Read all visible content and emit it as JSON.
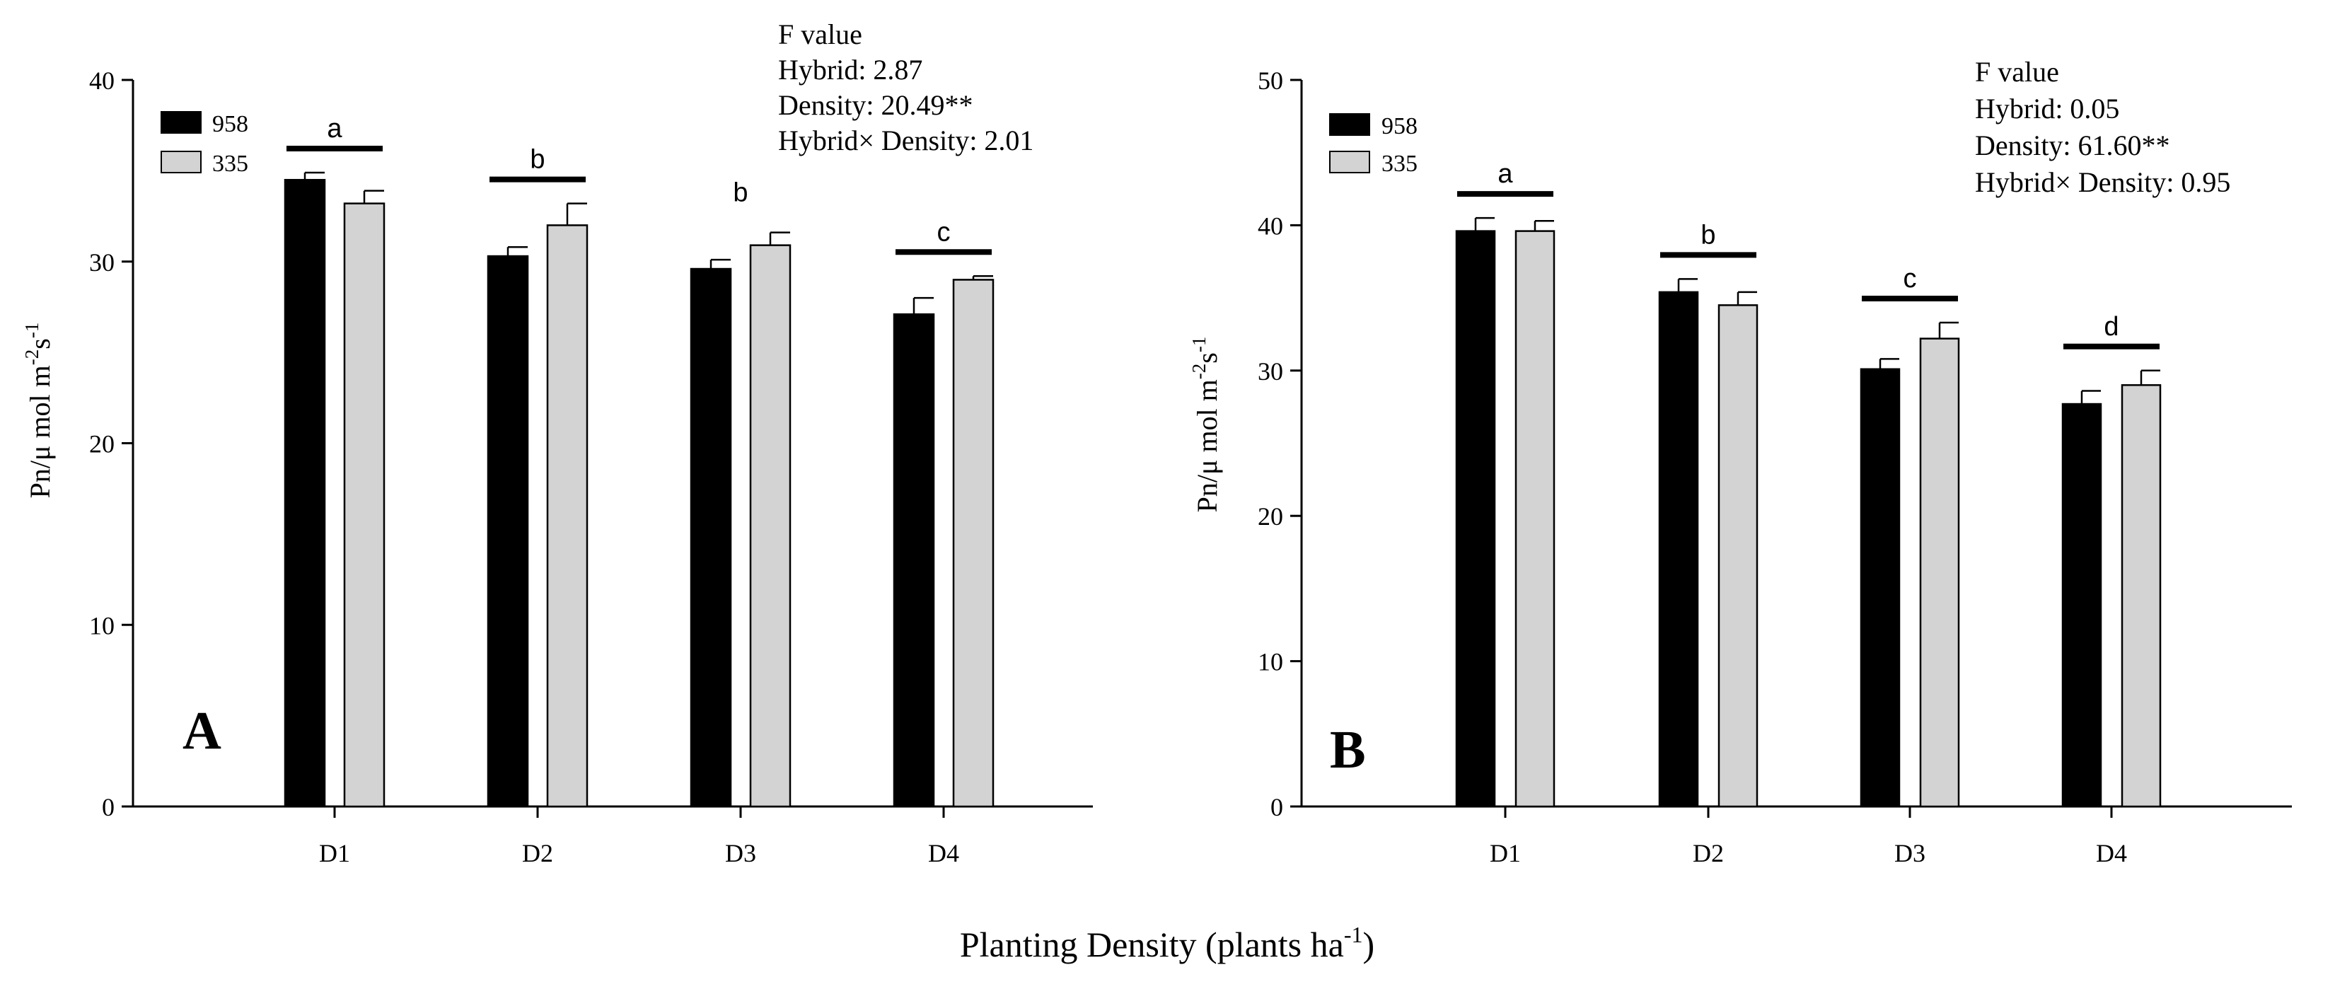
{
  "figure": {
    "xlabel_main": "Planting Density (plants ha",
    "xlabel_sup": "-1",
    "xlabel_close": ")"
  },
  "chart_data": [
    {
      "type": "bar",
      "panel_label": "A",
      "categories": [
        "D1",
        "D2",
        "D3",
        "D4"
      ],
      "series": [
        {
          "name": "958",
          "color": "#000000",
          "values": [
            34.5,
            30.3,
            29.6,
            27.1
          ],
          "errors": [
            0.4,
            0.5,
            0.5,
            0.9
          ]
        },
        {
          "name": "335",
          "color": "#d3d3d3",
          "values": [
            33.2,
            32.0,
            30.9,
            29.0
          ],
          "errors": [
            0.7,
            1.2,
            0.7,
            0.2
          ]
        }
      ],
      "significance": [
        "a",
        "b",
        "b",
        "c"
      ],
      "significance_bar": [
        true,
        true,
        false,
        true
      ],
      "ylabel_main": "Pn/μ mol m",
      "ylabel_sup1": "-2",
      "ylabel_mid": "s",
      "ylabel_sup2": "-1",
      "ylim": [
        0,
        40
      ],
      "yticks": [
        0,
        10,
        20,
        30,
        40
      ],
      "legend_position": "top-left",
      "annotation": {
        "title": "F value",
        "lines": [
          "Hybrid: 2.87",
          "Density: 20.49**",
          "Hybrid×  Density: 2.01"
        ]
      }
    },
    {
      "type": "bar",
      "panel_label": "B",
      "categories": [
        "D1",
        "D2",
        "D3",
        "D4"
      ],
      "series": [
        {
          "name": "958",
          "color": "#000000",
          "values": [
            39.6,
            35.4,
            30.1,
            27.7
          ],
          "errors": [
            0.9,
            0.9,
            0.7,
            0.9
          ]
        },
        {
          "name": "335",
          "color": "#d3d3d3",
          "values": [
            39.6,
            34.5,
            32.2,
            29.0
          ],
          "errors": [
            0.7,
            0.9,
            1.1,
            1.0
          ]
        }
      ],
      "significance": [
        "a",
        "b",
        "c",
        "d"
      ],
      "significance_bar": [
        true,
        true,
        true,
        true
      ],
      "ylabel_main": "Pn/μ mol m",
      "ylabel_sup1": "-2",
      "ylabel_mid": "s",
      "ylabel_sup2": "-1",
      "ylim": [
        0,
        50
      ],
      "yticks": [
        0,
        10,
        20,
        30,
        40,
        50
      ],
      "legend_position": "top-left",
      "annotation": {
        "title": "F value",
        "lines": [
          "Hybrid: 0.05",
          "Density: 61.60**",
          "Hybrid×  Density: 0.95"
        ]
      }
    }
  ]
}
